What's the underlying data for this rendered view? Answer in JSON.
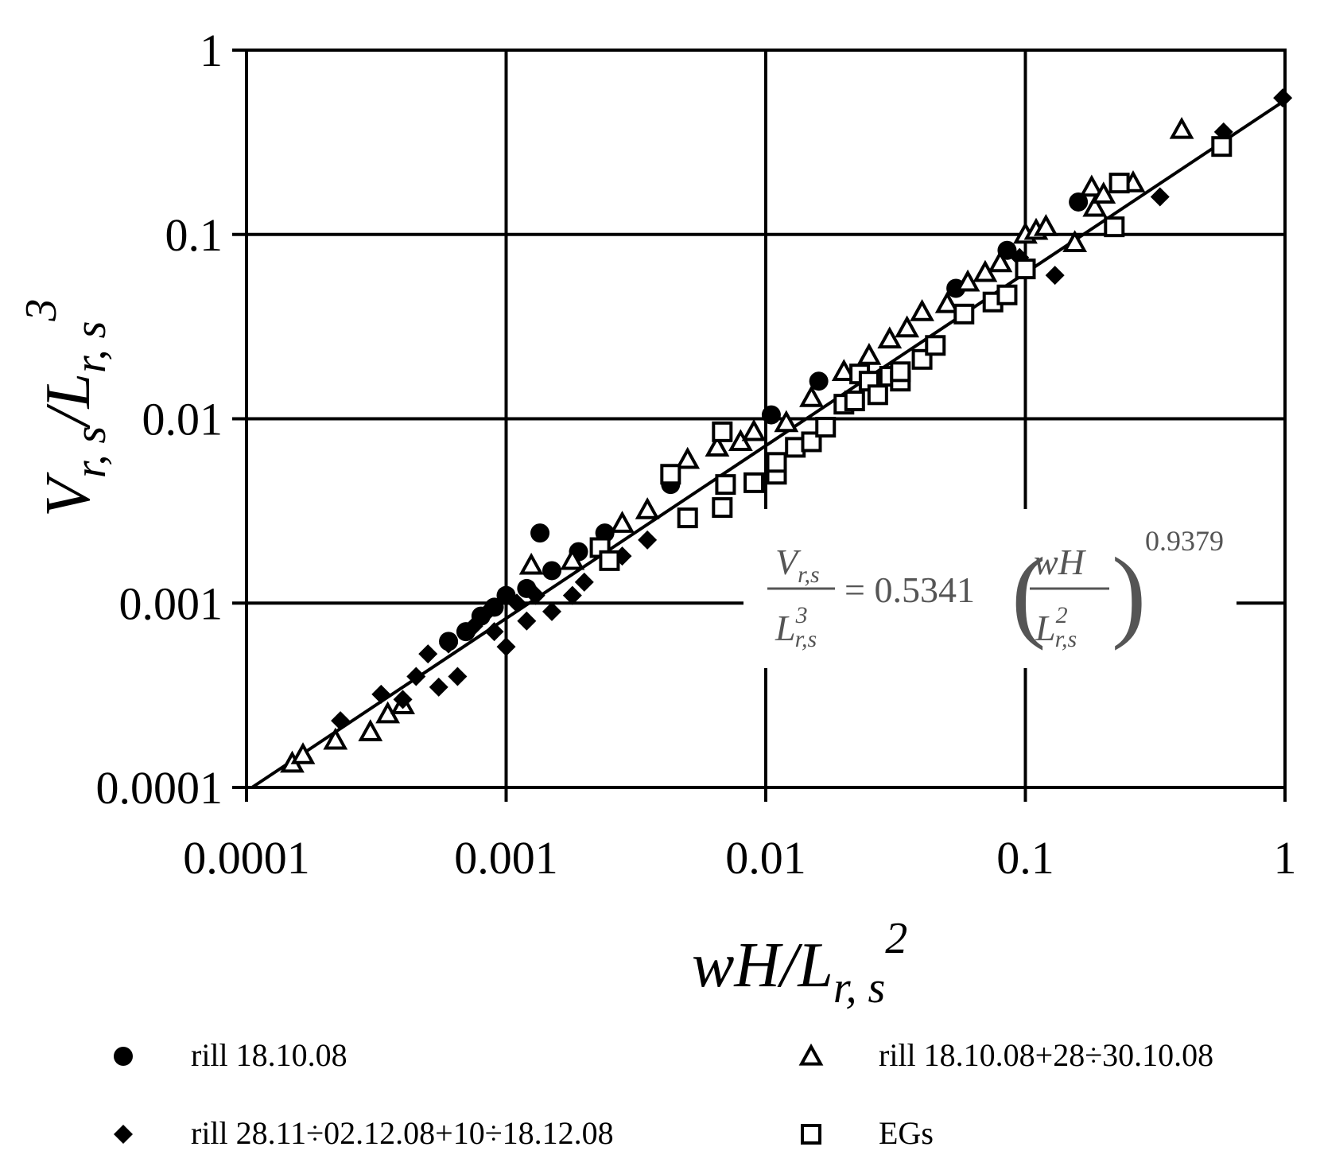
{
  "chart_data": {
    "type": "scatter",
    "title": "",
    "xlabel": {
      "base": "wH/L",
      "sub": "r, s",
      "sup": "2"
    },
    "ylabel": {
      "base": "V",
      "sub1": "r, s",
      "mid": "/L",
      "sub2": "r, s",
      "sup": "3"
    },
    "xscale": "log",
    "yscale": "log",
    "xlim": [
      0.0001,
      1
    ],
    "ylim": [
      0.0001,
      1
    ],
    "x_ticks": [
      "0.0001",
      "0.001",
      "0.01",
      "0.1",
      "1"
    ],
    "y_ticks": [
      "0.0001",
      "0.001",
      "0.01",
      "0.1",
      "1"
    ],
    "grid": true,
    "legend_position": "bottom",
    "equation": {
      "lhs_num_base": "V",
      "lhs_num_sub": "r,s",
      "lhs_den_base": "L",
      "lhs_den_sup": "3",
      "lhs_den_sub": "r,s",
      "coef": "= 0.5341",
      "rhs_num": "wH",
      "rhs_den_base": "L",
      "rhs_den_sup": "2",
      "rhs_den_sub": "r,s",
      "exponent": "0.9379"
    },
    "fit_line": {
      "coef": 0.5341,
      "exp": 0.9379,
      "x": [
        0.000105,
        1
      ]
    },
    "series": [
      {
        "name": "rill 18.10.08",
        "marker": "circle-filled",
        "points": [
          [
            0.00135,
            0.0024
          ],
          [
            0.16,
            0.15
          ],
          [
            0.085,
            0.082
          ],
          [
            0.054,
            0.051
          ],
          [
            0.016,
            0.016
          ],
          [
            0.0105,
            0.0105
          ],
          [
            0.0043,
            0.0044
          ],
          [
            0.0024,
            0.0024
          ],
          [
            0.0019,
            0.0019
          ],
          [
            0.0015,
            0.0015
          ],
          [
            0.0012,
            0.0012
          ],
          [
            0.001,
            0.0011
          ],
          [
            0.0009,
            0.00095
          ],
          [
            0.0008,
            0.00085
          ],
          [
            0.0007,
            0.0007
          ],
          [
            0.0006,
            0.00062
          ]
        ]
      },
      {
        "name": "rill 18.10.08+28÷30.10.08",
        "marker": "triangle-open",
        "points": [
          [
            0.00015,
            0.000135
          ],
          [
            0.000165,
            0.00015
          ],
          [
            0.00022,
            0.00018
          ],
          [
            0.0003,
            0.0002
          ],
          [
            0.00035,
            0.00025
          ],
          [
            0.0004,
            0.00028
          ],
          [
            0.00125,
            0.0016
          ],
          [
            0.005,
            0.006
          ],
          [
            0.0065,
            0.007
          ],
          [
            0.008,
            0.0075
          ],
          [
            0.009,
            0.0085
          ],
          [
            0.012,
            0.0095
          ],
          [
            0.015,
            0.013
          ],
          [
            0.02,
            0.018
          ],
          [
            0.025,
            0.022
          ],
          [
            0.03,
            0.027
          ],
          [
            0.035,
            0.031
          ],
          [
            0.04,
            0.038
          ],
          [
            0.05,
            0.042
          ],
          [
            0.06,
            0.055
          ],
          [
            0.07,
            0.062
          ],
          [
            0.08,
            0.07
          ],
          [
            0.1,
            0.1
          ],
          [
            0.11,
            0.105
          ],
          [
            0.12,
            0.11
          ],
          [
            0.155,
            0.09
          ],
          [
            0.18,
            0.18
          ],
          [
            0.185,
            0.14
          ],
          [
            0.2,
            0.165
          ],
          [
            0.26,
            0.19
          ],
          [
            0.4,
            0.37
          ],
          [
            0.0035,
            0.0032
          ],
          [
            0.0028,
            0.0027
          ],
          [
            0.0018,
            0.0017
          ]
        ]
      },
      {
        "name": "rill 28.11÷02.12.08+10÷18.12.08",
        "marker": "diamond-filled",
        "points": [
          [
            0.00023,
            0.00023
          ],
          [
            0.00033,
            0.00032
          ],
          [
            0.00045,
            0.0004
          ],
          [
            0.0005,
            0.00053
          ],
          [
            0.0006,
            0.0006
          ],
          [
            0.00075,
            0.00075
          ],
          [
            0.00085,
            0.0009
          ],
          [
            0.001,
            0.00058
          ],
          [
            0.0012,
            0.0008
          ],
          [
            0.0015,
            0.0009
          ],
          [
            0.0018,
            0.0011
          ],
          [
            0.002,
            0.0013
          ],
          [
            0.0028,
            0.0018
          ],
          [
            0.0035,
            0.0022
          ],
          [
            0.13,
            0.06
          ],
          [
            0.095,
            0.075
          ],
          [
            0.33,
            0.16
          ],
          [
            0.58,
            0.36
          ],
          [
            0.98,
            0.55
          ],
          [
            0.00055,
            0.00035
          ],
          [
            0.00065,
            0.0004
          ],
          [
            0.0004,
            0.0003
          ],
          [
            0.0009,
            0.0007
          ],
          [
            0.0011,
            0.001
          ],
          [
            0.0013,
            0.0011
          ]
        ]
      },
      {
        "name": "EGs",
        "marker": "square-open",
        "points": [
          [
            0.0023,
            0.002
          ],
          [
            0.0025,
            0.0017
          ],
          [
            0.0043,
            0.005
          ],
          [
            0.005,
            0.0029
          ],
          [
            0.0068,
            0.0085
          ],
          [
            0.0068,
            0.0033
          ],
          [
            0.007,
            0.0044
          ],
          [
            0.009,
            0.0045
          ],
          [
            0.011,
            0.005
          ],
          [
            0.011,
            0.0058
          ],
          [
            0.013,
            0.007
          ],
          [
            0.015,
            0.0075
          ],
          [
            0.017,
            0.009
          ],
          [
            0.02,
            0.012
          ],
          [
            0.022,
            0.0125
          ],
          [
            0.023,
            0.0175
          ],
          [
            0.025,
            0.016
          ],
          [
            0.027,
            0.0135
          ],
          [
            0.03,
            0.017
          ],
          [
            0.033,
            0.016
          ],
          [
            0.033,
            0.018
          ],
          [
            0.04,
            0.021
          ],
          [
            0.045,
            0.025
          ],
          [
            0.058,
            0.037
          ],
          [
            0.075,
            0.043
          ],
          [
            0.085,
            0.047
          ],
          [
            0.1,
            0.065
          ],
          [
            0.22,
            0.11
          ],
          [
            0.23,
            0.19
          ],
          [
            0.57,
            0.3
          ]
        ]
      }
    ]
  }
}
